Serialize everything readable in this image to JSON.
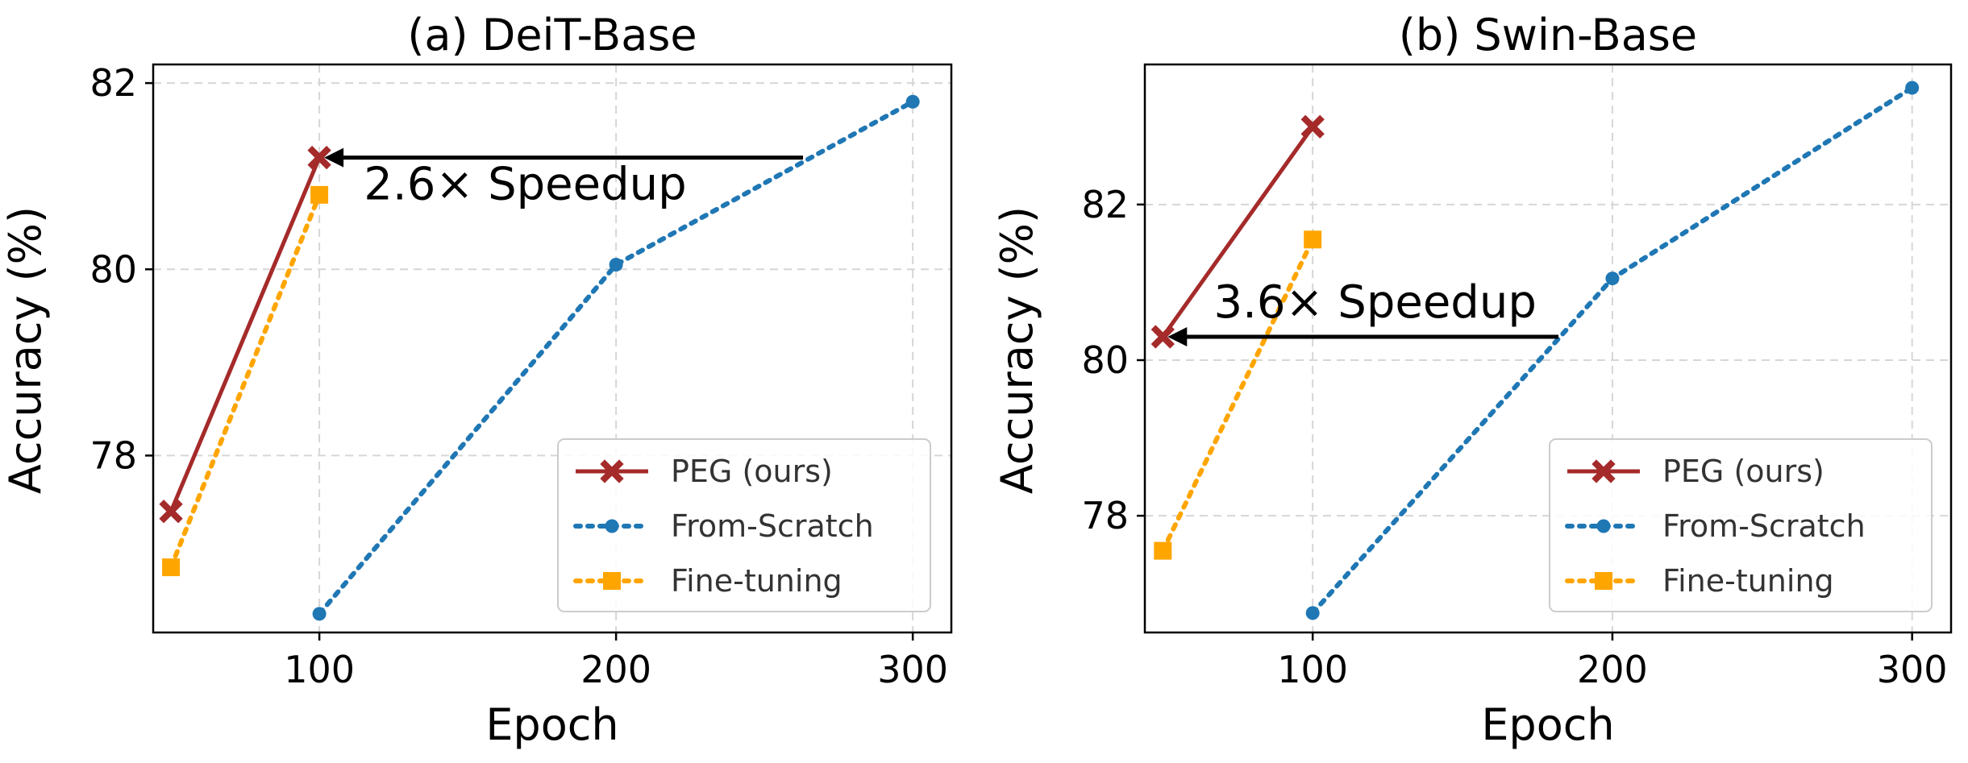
{
  "chart_data": [
    {
      "type": "line",
      "title": "(a) DeiT-Base",
      "xlabel": "Epoch",
      "ylabel": "Accuracy (%)",
      "xlim": [
        44,
        313
      ],
      "ylim": [
        76.1,
        82.2
      ],
      "xticks": [
        100,
        200,
        300
      ],
      "yticks": [
        78,
        80,
        82
      ],
      "grid": true,
      "legend_position": "lower-right",
      "series": [
        {
          "name": "PEG (ours)",
          "color": "#a52a2a",
          "style": "solid",
          "marker": "x",
          "x": [
            50,
            100
          ],
          "y": [
            77.4,
            81.2
          ]
        },
        {
          "name": "From-Scratch",
          "color": "#1f77b4",
          "style": "dotted",
          "marker": "circle",
          "x": [
            100,
            200,
            300
          ],
          "y": [
            76.3,
            80.05,
            81.8
          ]
        },
        {
          "name": "Fine-tuning",
          "color": "#ffa500",
          "style": "dotted",
          "marker": "square",
          "x": [
            50,
            100
          ],
          "y": [
            76.8,
            80.8
          ]
        }
      ],
      "annotation": {
        "text": "2.6× Speedup",
        "arrow_from": [
          263,
          81.2
        ],
        "arrow_to": [
          100,
          81.2
        ]
      }
    },
    {
      "type": "line",
      "title": "(b) Swin-Base",
      "xlabel": "Epoch",
      "ylabel": "Accuracy (%)",
      "xlim": [
        44,
        313
      ],
      "ylim": [
        76.5,
        83.8
      ],
      "xticks": [
        100,
        200,
        300
      ],
      "yticks": [
        78,
        80,
        82
      ],
      "grid": true,
      "legend_position": "lower-right",
      "series": [
        {
          "name": "PEG (ours)",
          "color": "#a52a2a",
          "style": "solid",
          "marker": "x",
          "x": [
            50,
            100
          ],
          "y": [
            80.3,
            83.0
          ]
        },
        {
          "name": "From-Scratch",
          "color": "#1f77b4",
          "style": "dotted",
          "marker": "circle",
          "x": [
            100,
            200,
            300
          ],
          "y": [
            76.75,
            81.05,
            83.5
          ]
        },
        {
          "name": "Fine-tuning",
          "color": "#ffa500",
          "style": "dotted",
          "marker": "square",
          "x": [
            50,
            100
          ],
          "y": [
            77.55,
            81.55
          ]
        }
      ],
      "annotation": {
        "text": "3.6× Speedup",
        "arrow_from": [
          182,
          80.3
        ],
        "arrow_to": [
          50,
          80.3
        ]
      }
    }
  ]
}
